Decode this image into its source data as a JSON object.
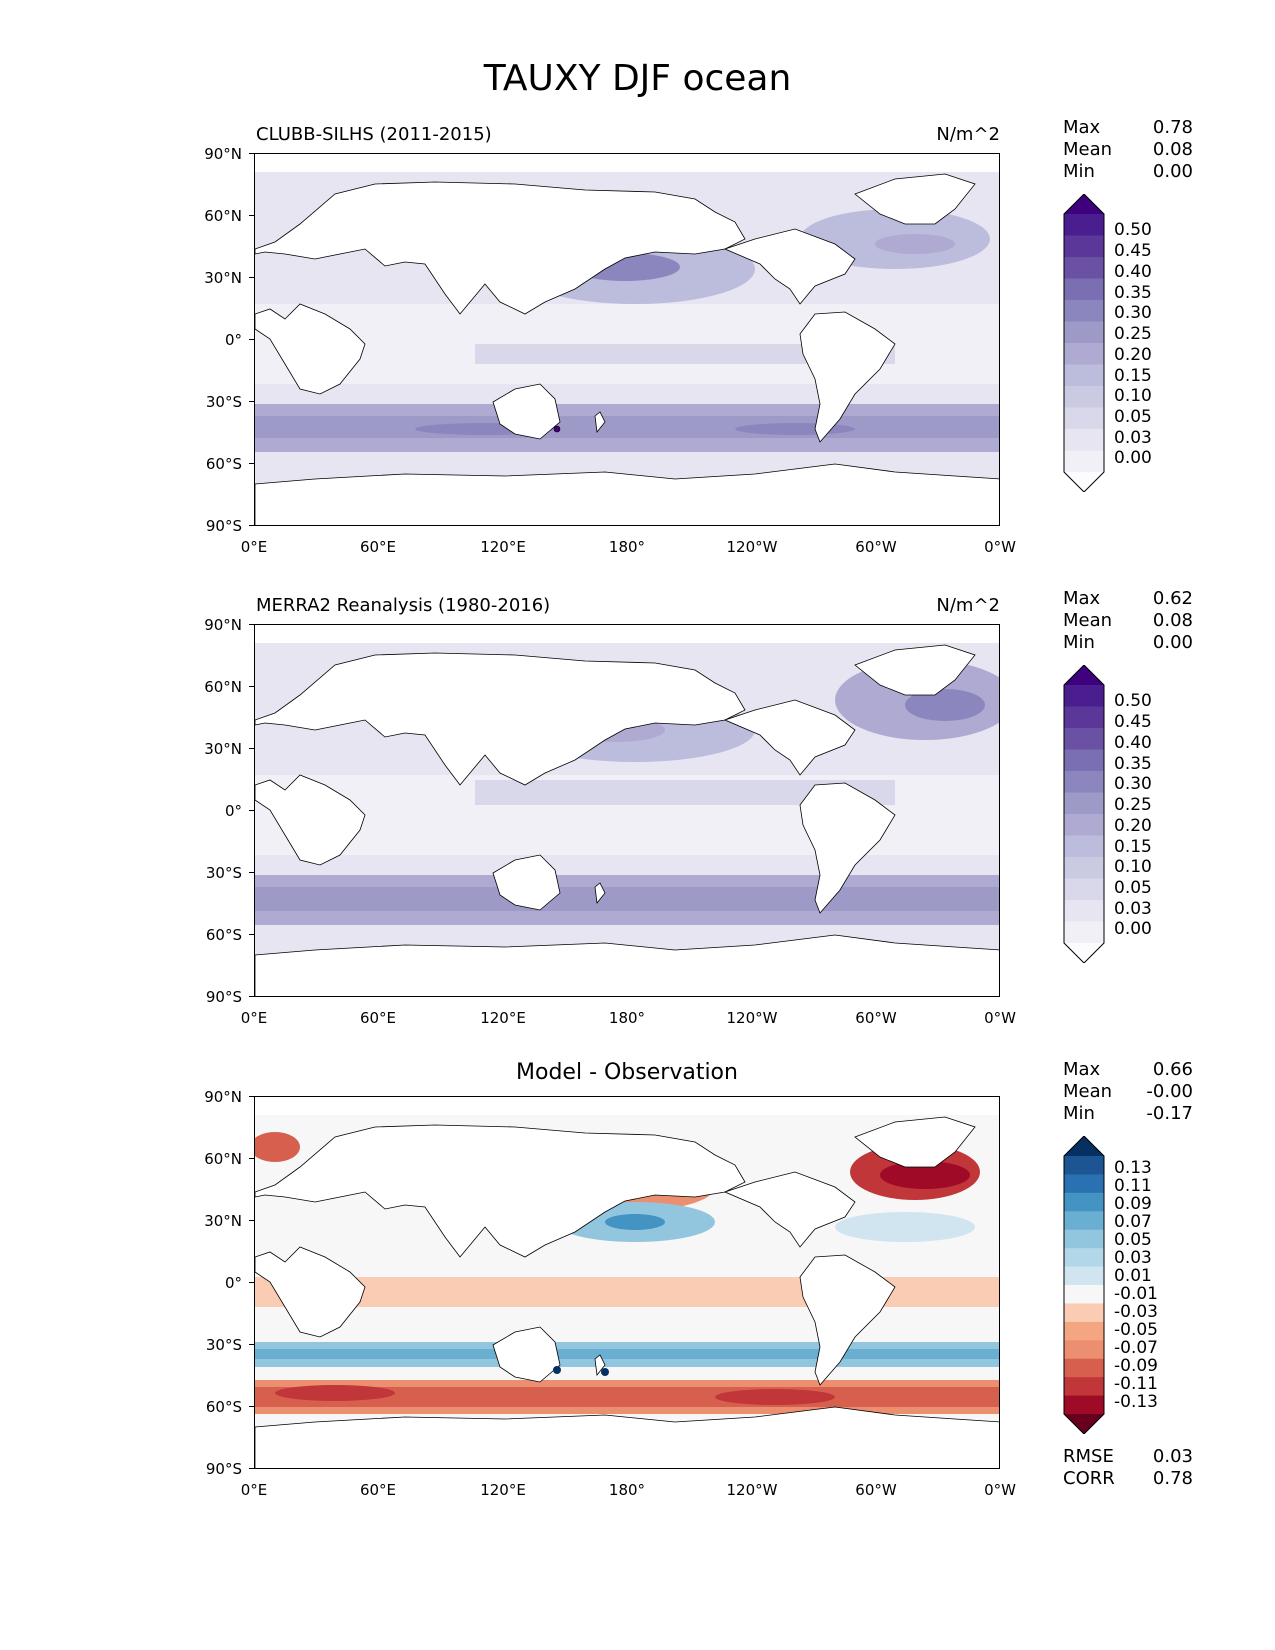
{
  "suptitle": "TAUXY DJF ocean",
  "axes": {
    "lat_labels": [
      "90°N",
      "60°N",
      "30°N",
      "0°",
      "30°S",
      "60°S",
      "90°S"
    ],
    "lon_labels": [
      "0°E",
      "60°E",
      "120°E",
      "180°",
      "120°W",
      "60°W",
      "0°W"
    ]
  },
  "colors": {
    "purple_scale": [
      "#fcfbfd",
      "#f2f0f7",
      "#e6e5f1",
      "#d9d8ea",
      "#cbcae3",
      "#bcbcdc",
      "#aeaad2",
      "#9e9ac8",
      "#8c86bf",
      "#7b6fb3",
      "#6a51a3",
      "#5a3798",
      "#4a1e8f",
      "#3f007d"
    ],
    "diverging_scale": [
      "#67001f",
      "#9f0a27",
      "#c13639",
      "#d6604d",
      "#eb8f70",
      "#f4a582",
      "#fbccb4",
      "#f7f7f7",
      "#d1e5f0",
      "#b2d7e8",
      "#92c5de",
      "#6aaed2",
      "#4393c3",
      "#2a71b2",
      "#1c5592",
      "#053061"
    ],
    "land": "#ffffff",
    "coast": "#000000"
  },
  "panels": [
    {
      "title_left": "CLUBB-SILHS (2011-2015)",
      "title_right": "N/m^2",
      "stats": [
        {
          "k": "Max",
          "v": "0.78"
        },
        {
          "k": "Mean",
          "v": "0.08"
        },
        {
          "k": "Min",
          "v": "0.00"
        }
      ],
      "colorbar_labels": [
        "0.50",
        "0.45",
        "0.40",
        "0.35",
        "0.30",
        "0.25",
        "0.20",
        "0.15",
        "0.10",
        "0.05",
        "0.03",
        "0.00"
      ]
    },
    {
      "title_left": "MERRA2 Reanalysis (1980-2016)",
      "title_right": "N/m^2",
      "stats": [
        {
          "k": "Max",
          "v": "0.62"
        },
        {
          "k": "Mean",
          "v": "0.08"
        },
        {
          "k": "Min",
          "v": "0.00"
        }
      ],
      "colorbar_labels": [
        "0.50",
        "0.45",
        "0.40",
        "0.35",
        "0.30",
        "0.25",
        "0.20",
        "0.15",
        "0.10",
        "0.05",
        "0.03",
        "0.00"
      ]
    },
    {
      "title_center": "Model - Observation",
      "stats": [
        {
          "k": "Max",
          "v": "0.66"
        },
        {
          "k": "Mean",
          "v": "-0.00"
        },
        {
          "k": "Min",
          "v": "-0.17"
        }
      ],
      "colorbar_labels": [
        "0.13",
        "0.11",
        "0.09",
        "0.07",
        "0.05",
        "0.03",
        "0.01",
        "-0.01",
        "-0.03",
        "-0.05",
        "-0.07",
        "-0.09",
        "-0.11",
        "-0.13"
      ],
      "metrics": [
        {
          "k": "RMSE",
          "v": "0.03"
        },
        {
          "k": "CORR",
          "v": "0.78"
        }
      ]
    }
  ]
}
